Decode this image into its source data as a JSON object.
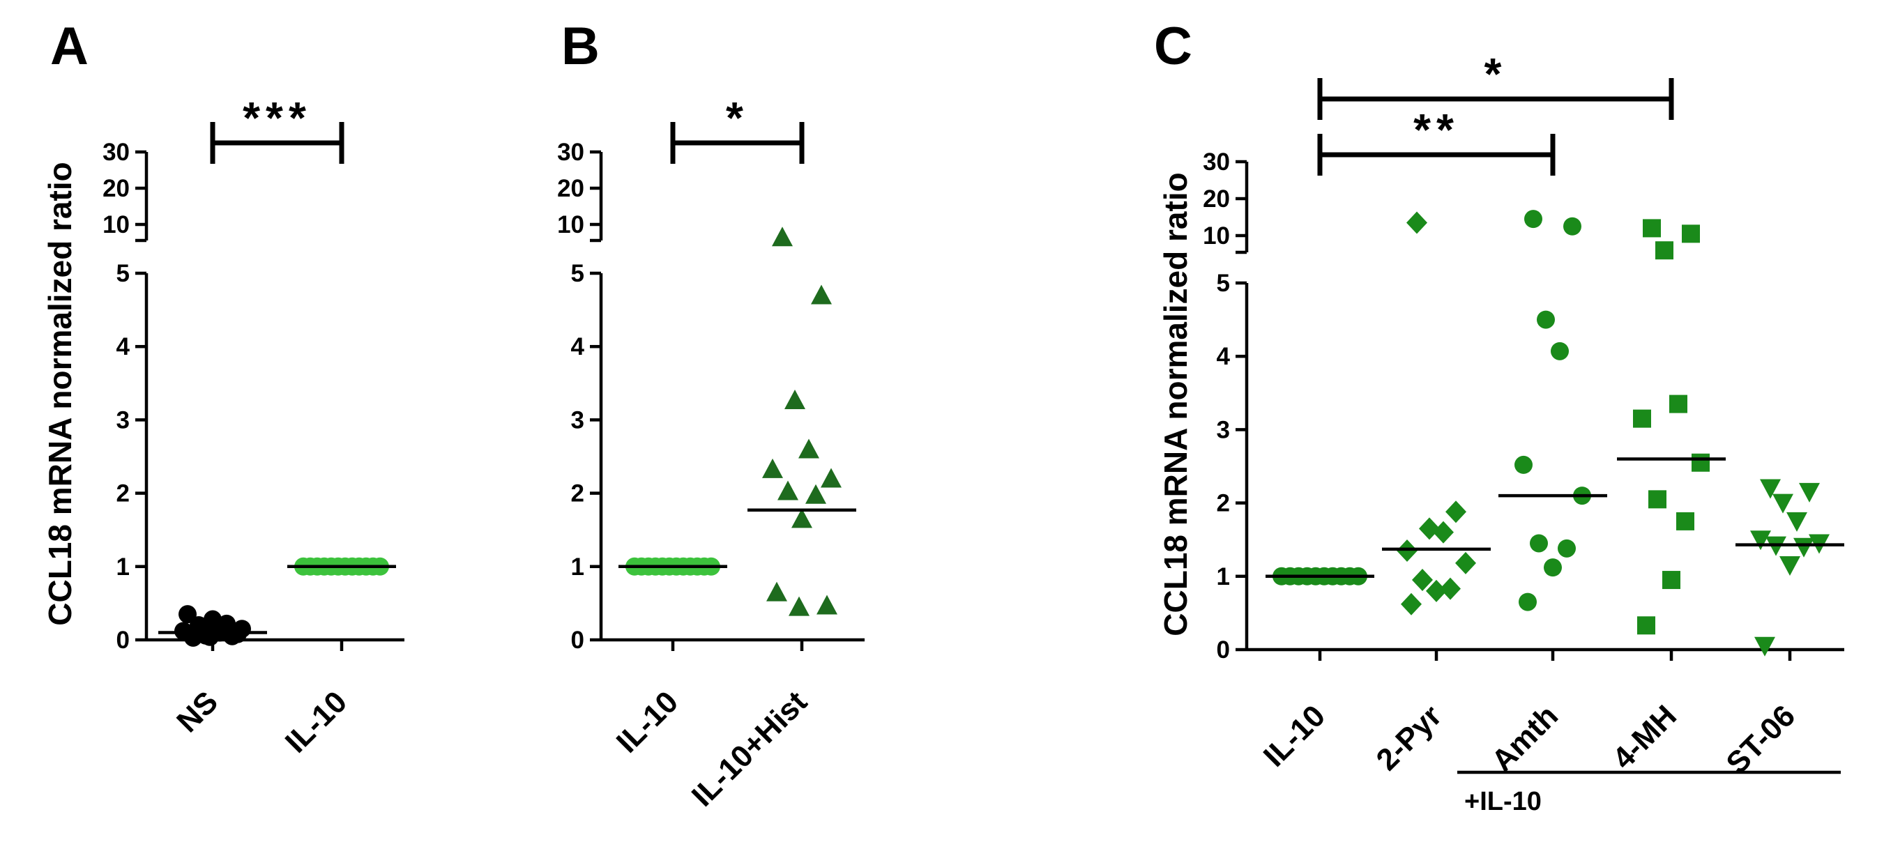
{
  "colors": {
    "black": "#000000",
    "dark_green": "#1e6b1e",
    "mid_green": "#1a8a1a",
    "light_green": "#3cc23c"
  },
  "chart_data": [
    {
      "panel": "A",
      "type": "scatter",
      "ylabel": "CCL18 mRNA normalized ratio",
      "y_broken_axis": {
        "lower_range": [
          0,
          5
        ],
        "upper_range": [
          5,
          30
        ]
      },
      "yticks_lower": [
        0,
        1,
        2,
        3,
        4,
        5
      ],
      "yticks_upper": [
        10,
        20,
        30
      ],
      "categories": [
        "NS",
        "IL-10"
      ],
      "series": [
        {
          "category": "NS",
          "marker": "circle",
          "color": "#000000",
          "values": [
            0.03,
            0.05,
            0.06,
            0.1,
            0.12,
            0.15,
            0.2,
            0.22,
            0.28,
            0.35,
            0.08,
            0.04
          ],
          "mean": 0.1
        },
        {
          "category": "IL-10",
          "marker": "circle",
          "color": "#3cc23c",
          "values": [
            1,
            1,
            1,
            1,
            1,
            1,
            1,
            1,
            1,
            1,
            1,
            1
          ],
          "mean": 1
        }
      ],
      "significance": [
        {
          "from": "NS",
          "to": "IL-10",
          "label": "***"
        }
      ]
    },
    {
      "panel": "B",
      "type": "scatter",
      "y_broken_axis": {
        "lower_range": [
          0,
          5
        ],
        "upper_range": [
          5,
          30
        ]
      },
      "yticks_lower": [
        0,
        1,
        2,
        3,
        4,
        5
      ],
      "yticks_upper": [
        10,
        20,
        30
      ],
      "categories": [
        "IL-10",
        "IL-10+Hist"
      ],
      "series": [
        {
          "category": "IL-10",
          "marker": "circle",
          "color": "#3cc23c",
          "values": [
            1,
            1,
            1,
            1,
            1,
            1,
            1,
            1,
            1,
            1,
            1,
            1
          ],
          "mean": 1
        },
        {
          "category": "IL-10+Hist",
          "marker": "triangle-up",
          "color": "#1e6b1e",
          "values": [
            6.5,
            4.7,
            3.27,
            2.6,
            2.33,
            2.2,
            2.03,
            1.98,
            1.65,
            0.65,
            0.47,
            0.45
          ],
          "mean": 1.77
        }
      ],
      "significance": [
        {
          "from": "IL-10",
          "to": "IL-10+Hist",
          "label": "*"
        }
      ]
    },
    {
      "panel": "C",
      "type": "scatter",
      "ylabel": "CCL18 mRNA normalized ratio",
      "y_broken_axis": {
        "lower_range": [
          0,
          5
        ],
        "upper_range": [
          5,
          30
        ]
      },
      "yticks_lower": [
        0,
        1,
        2,
        3,
        4,
        5
      ],
      "yticks_upper": [
        10,
        20,
        30
      ],
      "categories": [
        "IL-10",
        "2-Pyr",
        "Amth",
        "4-MH",
        "ST-06"
      ],
      "group_label": "+IL-10",
      "series": [
        {
          "category": "IL-10",
          "marker": "circle",
          "color": "#1a8a1a",
          "values": [
            1,
            1,
            1,
            1,
            1,
            1,
            1,
            1,
            1,
            1
          ],
          "mean": 1
        },
        {
          "category": "2-Pyr",
          "marker": "diamond",
          "color": "#1a8a1a",
          "values": [
            13.5,
            1.88,
            1.65,
            1.6,
            1.35,
            1.18,
            0.95,
            0.83,
            0.8,
            0.62
          ],
          "mean": 1.37
        },
        {
          "category": "Amth",
          "marker": "circle",
          "color": "#1a8a1a",
          "values": [
            14.5,
            12.5,
            4.5,
            4.07,
            2.52,
            2.1,
            1.45,
            1.38,
            1.12,
            0.65
          ],
          "mean": 2.1
        },
        {
          "category": "4-MH",
          "marker": "square",
          "color": "#1a8a1a",
          "values": [
            12,
            10.5,
            6,
            3.35,
            3.15,
            2.55,
            2.05,
            1.75,
            0.95,
            0.33
          ],
          "mean": 2.6
        },
        {
          "category": "ST-06",
          "marker": "triangle-down",
          "color": "#1a8a1a",
          "values": [
            2.2,
            2.15,
            2.0,
            1.75,
            1.5,
            1.45,
            1.42,
            1.4,
            1.15,
            0.05
          ],
          "mean": 1.43
        }
      ],
      "significance": [
        {
          "from": "IL-10",
          "to": "Amth",
          "label": "**"
        },
        {
          "from": "IL-10",
          "to": "4-MH",
          "label": "*"
        }
      ]
    }
  ]
}
